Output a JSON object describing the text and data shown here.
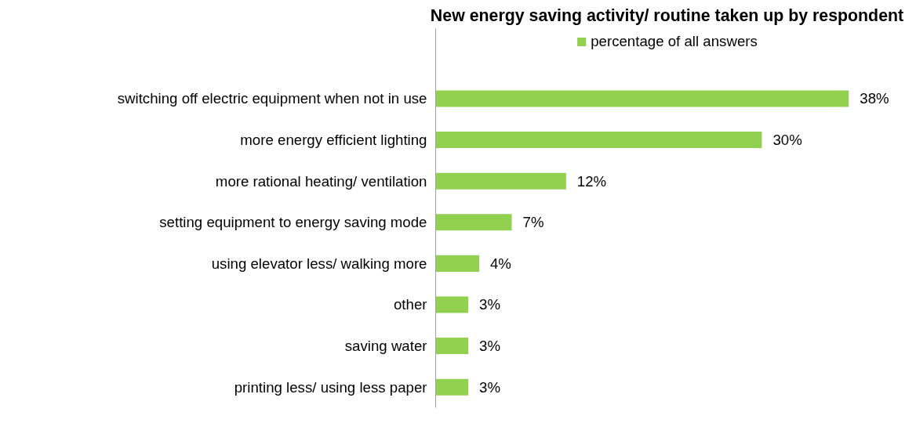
{
  "chart_data": {
    "type": "bar",
    "orientation": "horizontal",
    "title": "New energy saving activity/ routine taken up by respondent",
    "categories": [
      "switching off electric equipment when not in use",
      "more energy efficient lighting",
      "more rational heating/ ventilation",
      "setting equipment to energy saving mode",
      "using elevator less/ walking more",
      "other",
      "saving water",
      "printing less/ using less paper"
    ],
    "series": [
      {
        "name": "percentage of all answers",
        "color": "#92d050",
        "values": [
          38,
          30,
          12,
          7,
          4,
          3,
          3,
          3
        ],
        "value_labels": [
          "38%",
          "30%",
          "12%",
          "7%",
          "4%",
          "3%",
          "3%",
          "3%"
        ]
      }
    ],
    "legend": "top"
  }
}
